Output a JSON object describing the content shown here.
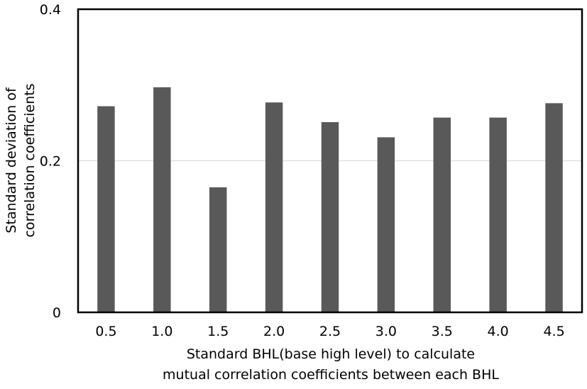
{
  "chart_data": {
    "type": "bar",
    "categories": [
      "0.5",
      "1.0",
      "1.5",
      "2.0",
      "2.5",
      "3.0",
      "3.5",
      "4.0",
      "4.5"
    ],
    "series": [
      {
        "values": [
          0.272,
          0.297,
          0.165,
          0.277,
          0.251,
          0.231,
          0.257,
          0.257,
          0.276
        ]
      }
    ],
    "ylim": [
      0,
      0.4
    ],
    "yticks": [
      "0",
      "0.2",
      "0.4"
    ],
    "ytick_values": [
      0,
      0.2,
      0.4
    ],
    "xlabel_lines": [
      "Standard BHL(base high level) to calculate",
      "mutual correlation coefficients between each BHL"
    ],
    "ylabel_lines": [
      "Standard deviation of",
      "correlation coefficients"
    ],
    "grid": true,
    "legend": "none",
    "colors": {
      "bar": "#595959",
      "grid": "#d9d9d9",
      "frame": "#000000"
    }
  }
}
